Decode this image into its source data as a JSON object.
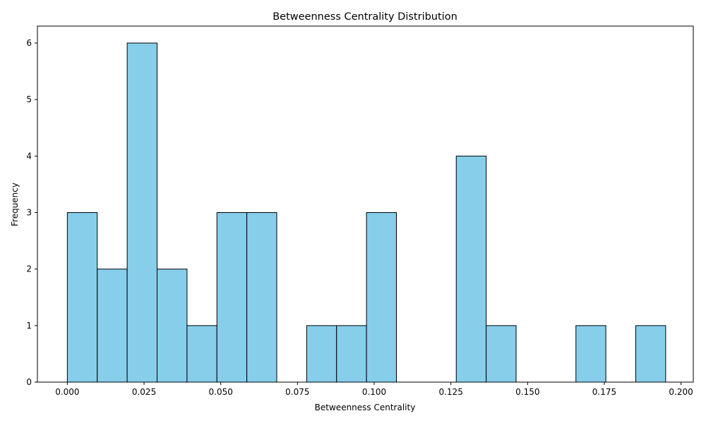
{
  "chart_data": {
    "type": "bar",
    "title": "Betweenness Centrality Distribution",
    "xlabel": "Betweenness Centrality",
    "ylabel": "Frequency",
    "bin_start": 0.0,
    "bin_width": 0.00975,
    "values": [
      3,
      2,
      6,
      2,
      1,
      3,
      3,
      0,
      1,
      1,
      3,
      0,
      0,
      4,
      1,
      0,
      0,
      1,
      0,
      1
    ],
    "xlim": [
      -0.00975,
      0.204
    ],
    "ylim": [
      0,
      6.3
    ],
    "xticks": [
      0.0,
      0.025,
      0.05,
      0.075,
      0.1,
      0.125,
      0.15,
      0.175,
      0.2
    ],
    "xtick_labels": [
      "0.000",
      "0.025",
      "0.050",
      "0.075",
      "0.100",
      "0.125",
      "0.150",
      "0.175",
      "0.200"
    ],
    "yticks": [
      0,
      1,
      2,
      3,
      4,
      5,
      6
    ],
    "ytick_labels": [
      "0",
      "1",
      "2",
      "3",
      "4",
      "5",
      "6"
    ],
    "bar_color": "#87ceeb",
    "edge_color": "#000000",
    "grid": false,
    "legend": "none"
  }
}
